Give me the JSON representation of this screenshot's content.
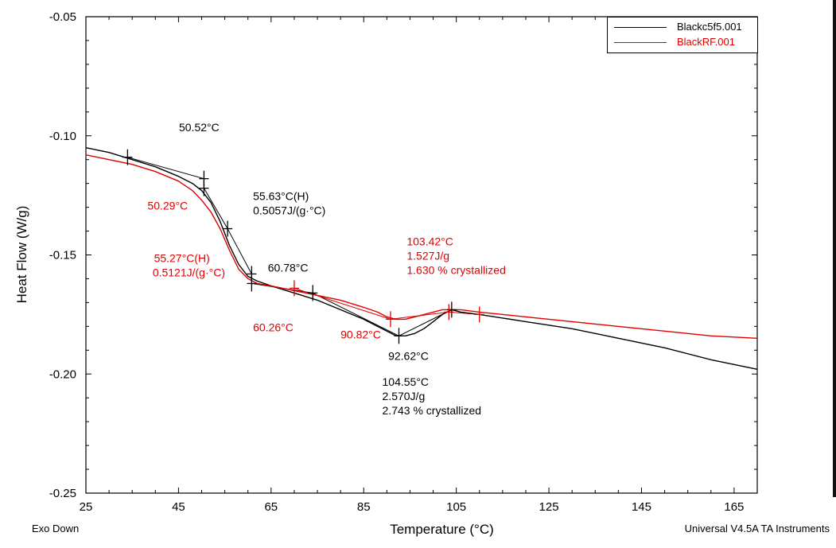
{
  "chart_data": {
    "type": "line",
    "title": "",
    "xlabel": "Temperature (°C)",
    "ylabel": "Heat Flow (W/g)",
    "xlim": [
      25,
      170
    ],
    "ylim": [
      -0.25,
      -0.05
    ],
    "xticks": [
      "25",
      "45",
      "65",
      "85",
      "105",
      "125",
      "145",
      "165"
    ],
    "yticks": [
      "-0.05",
      "-0.10",
      "-0.15",
      "-0.20",
      "-0.25"
    ],
    "grid": false,
    "legend_position": "top-right",
    "series": [
      {
        "name": "Blackc5f5.001",
        "color": "#000000",
        "x": [
          25,
          30,
          35,
          40,
          45,
          48,
          50,
          52,
          54,
          56,
          58,
          60,
          62,
          65,
          70,
          75,
          80,
          85,
          88,
          90,
          92,
          94,
          96,
          98,
          100,
          102,
          104,
          106,
          110,
          120,
          130,
          140,
          150,
          160,
          170
        ],
        "y": [
          -0.105,
          -0.107,
          -0.11,
          -0.113,
          -0.117,
          -0.12,
          -0.123,
          -0.128,
          -0.136,
          -0.146,
          -0.154,
          -0.159,
          -0.161,
          -0.163,
          -0.166,
          -0.169,
          -0.173,
          -0.177,
          -0.18,
          -0.182,
          -0.184,
          -0.184,
          -0.183,
          -0.181,
          -0.178,
          -0.175,
          -0.173,
          -0.174,
          -0.175,
          -0.178,
          -0.181,
          -0.185,
          -0.189,
          -0.194,
          -0.198
        ]
      },
      {
        "name": "BlackRF.001",
        "color": "#e00000",
        "x": [
          25,
          30,
          35,
          40,
          45,
          48,
          50,
          52,
          54,
          56,
          58,
          60,
          62,
          65,
          70,
          75,
          80,
          85,
          88,
          90,
          92,
          94,
          96,
          98,
          100,
          102,
          104,
          106,
          110,
          120,
          130,
          140,
          150,
          160,
          170
        ],
        "y": [
          -0.108,
          -0.11,
          -0.112,
          -0.115,
          -0.119,
          -0.123,
          -0.127,
          -0.132,
          -0.139,
          -0.148,
          -0.156,
          -0.16,
          -0.162,
          -0.163,
          -0.165,
          -0.167,
          -0.169,
          -0.172,
          -0.174,
          -0.176,
          -0.177,
          -0.177,
          -0.176,
          -0.175,
          -0.174,
          -0.173,
          -0.173,
          -0.173,
          -0.174,
          -0.176,
          -0.178,
          -0.18,
          -0.182,
          -0.184,
          -0.185
        ]
      }
    ],
    "annotations": [
      {
        "text": "50.52°C",
        "color": "#000000",
        "x": 45.1,
        "y": -0.098
      },
      {
        "text": "55.63°C(H)",
        "color": "#000000",
        "x": 61.1,
        "y": -0.127
      },
      {
        "text": "0.5057J/(g·°C)",
        "color": "#000000",
        "x": 61.1,
        "y": -0.133
      },
      {
        "text": "60.78°C",
        "color": "#000000",
        "x": 64.3,
        "y": -0.157
      },
      {
        "text": "50.29°C",
        "color": "#e00000",
        "x": 38.3,
        "y": -0.131
      },
      {
        "text": "55.27°C(H)",
        "color": "#e00000",
        "x": 39.7,
        "y": -0.153
      },
      {
        "text": "0.5121J/(g·°C)",
        "color": "#e00000",
        "x": 39.4,
        "y": -0.159
      },
      {
        "text": "60.26°C",
        "color": "#e00000",
        "x": 61.1,
        "y": -0.182
      },
      {
        "text": "90.82°C",
        "color": "#e00000",
        "x": 80.0,
        "y": -0.185
      },
      {
        "text": "103.42°C",
        "color": "#e00000",
        "x": 94.3,
        "y": -0.146
      },
      {
        "text": "1.527J/g",
        "color": "#e00000",
        "x": 94.3,
        "y": -0.152
      },
      {
        "text": "1.630 % crystallized",
        "color": "#e00000",
        "x": 94.3,
        "y": -0.158
      },
      {
        "text": "92.62°C",
        "color": "#000000",
        "x": 90.3,
        "y": -0.194
      },
      {
        "text": "104.55°C",
        "color": "#000000",
        "x": 89.0,
        "y": -0.205
      },
      {
        "text": "2.570J/g",
        "color": "#000000",
        "x": 89.0,
        "y": -0.211
      },
      {
        "text": "2.743 % crystallized",
        "color": "#000000",
        "x": 89.0,
        "y": -0.217
      }
    ],
    "markers": [
      {
        "color": "#000000",
        "x": 34.0,
        "y": -0.109
      },
      {
        "color": "#000000",
        "x": 50.5,
        "y": -0.118
      },
      {
        "color": "#000000",
        "x": 50.5,
        "y": -0.122
      },
      {
        "color": "#000000",
        "x": 55.6,
        "y": -0.139
      },
      {
        "color": "#000000",
        "x": 60.8,
        "y": -0.158
      },
      {
        "color": "#000000",
        "x": 60.8,
        "y": -0.162
      },
      {
        "color": "#000000",
        "x": 74.0,
        "y": -0.166
      },
      {
        "color": "#000000",
        "x": 92.6,
        "y": -0.184
      },
      {
        "color": "#000000",
        "x": 104.0,
        "y": -0.173
      },
      {
        "color": "#e00000",
        "x": 70.0,
        "y": -0.164
      },
      {
        "color": "#e00000",
        "x": 90.8,
        "y": -0.177
      },
      {
        "color": "#e00000",
        "x": 103.4,
        "y": -0.174
      },
      {
        "color": "#e00000",
        "x": 110.0,
        "y": -0.175
      }
    ]
  },
  "footer": {
    "left": "Exo Down",
    "right": "Universal V4.5A TA Instruments"
  }
}
